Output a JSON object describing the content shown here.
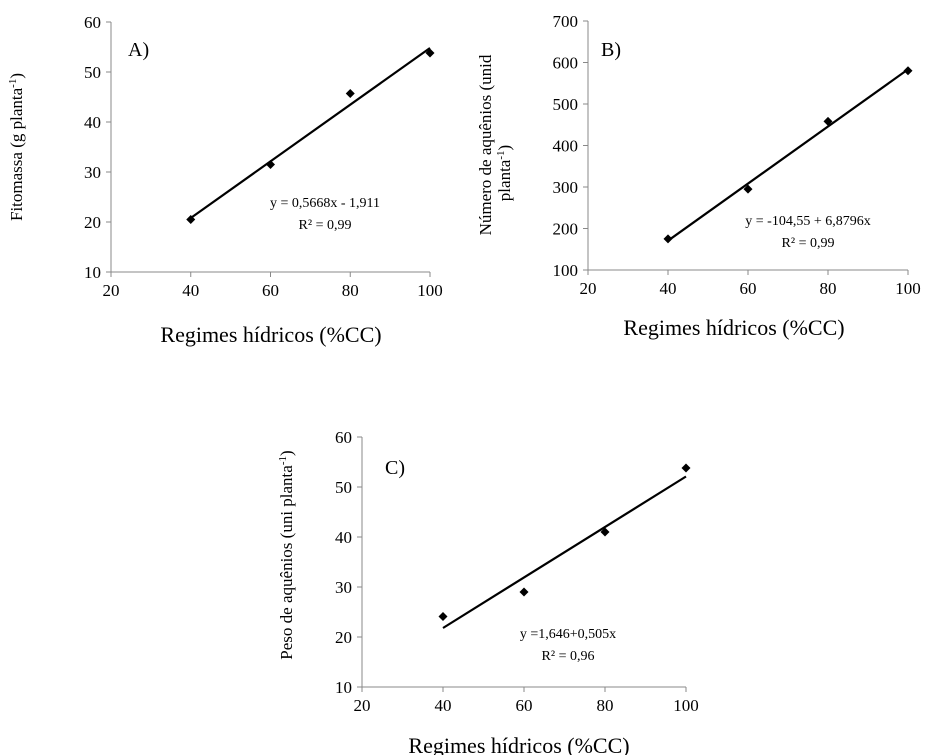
{
  "chart_data": [
    {
      "type": "scatter",
      "panel_label": "A)",
      "xlabel": "Regimes hídricos (%CC)",
      "ylabel": "Fitomassa (g planta",
      "ylabel_sup": "-1",
      "ylabel_end": ")",
      "xlim": [
        20,
        100
      ],
      "ylim": [
        10,
        60
      ],
      "xticks": [
        20,
        40,
        60,
        80,
        100
      ],
      "yticks": [
        10,
        20,
        30,
        40,
        50,
        60
      ],
      "x": [
        40,
        60,
        80,
        100
      ],
      "y": [
        20.5,
        31.5,
        45.7,
        53.8
      ],
      "trendline": {
        "x": [
          40,
          100
        ],
        "y": [
          20.8,
          54.8
        ]
      },
      "equation": "y = 0,5668x - 1,911",
      "r2": "R² = 0,99",
      "grid": false
    },
    {
      "type": "scatter",
      "panel_label": "B)",
      "xlabel": "Regimes hídricos (%CC)",
      "ylabel": "Número de aquênios (unid",
      "ylabel_line2": "planta",
      "ylabel_sup": "-1",
      "ylabel_end": ")",
      "xlim": [
        20,
        100
      ],
      "ylim": [
        100,
        700
      ],
      "xticks": [
        20,
        40,
        60,
        80,
        100
      ],
      "yticks": [
        100,
        200,
        300,
        400,
        500,
        600,
        700
      ],
      "x": [
        40,
        60,
        80,
        100
      ],
      "y": [
        175,
        295,
        458,
        580
      ],
      "trendline": {
        "x": [
          40,
          100
        ],
        "y": [
          170.6,
          583.4
        ]
      },
      "equation": "y =  -104,55 + 6,8796x",
      "r2": "R² = 0,99",
      "grid": false
    },
    {
      "type": "scatter",
      "panel_label": "C)",
      "xlabel": "Regimes hídricos (%CC)",
      "ylabel": "Peso de aquênios (uni planta",
      "ylabel_sup": "-1",
      "ylabel_end": ")",
      "xlim": [
        20,
        100
      ],
      "ylim": [
        10,
        60
      ],
      "xticks": [
        20,
        40,
        60,
        80,
        100
      ],
      "yticks": [
        10,
        20,
        30,
        40,
        50,
        60
      ],
      "x": [
        40,
        60,
        80,
        100
      ],
      "y": [
        24.1,
        29.0,
        41.0,
        53.8
      ],
      "trendline": {
        "x": [
          40,
          100
        ],
        "y": [
          21.8,
          52.1
        ]
      },
      "equation": "y =1,646+0,505x",
      "r2": "R² = 0,96",
      "grid": false
    }
  ]
}
